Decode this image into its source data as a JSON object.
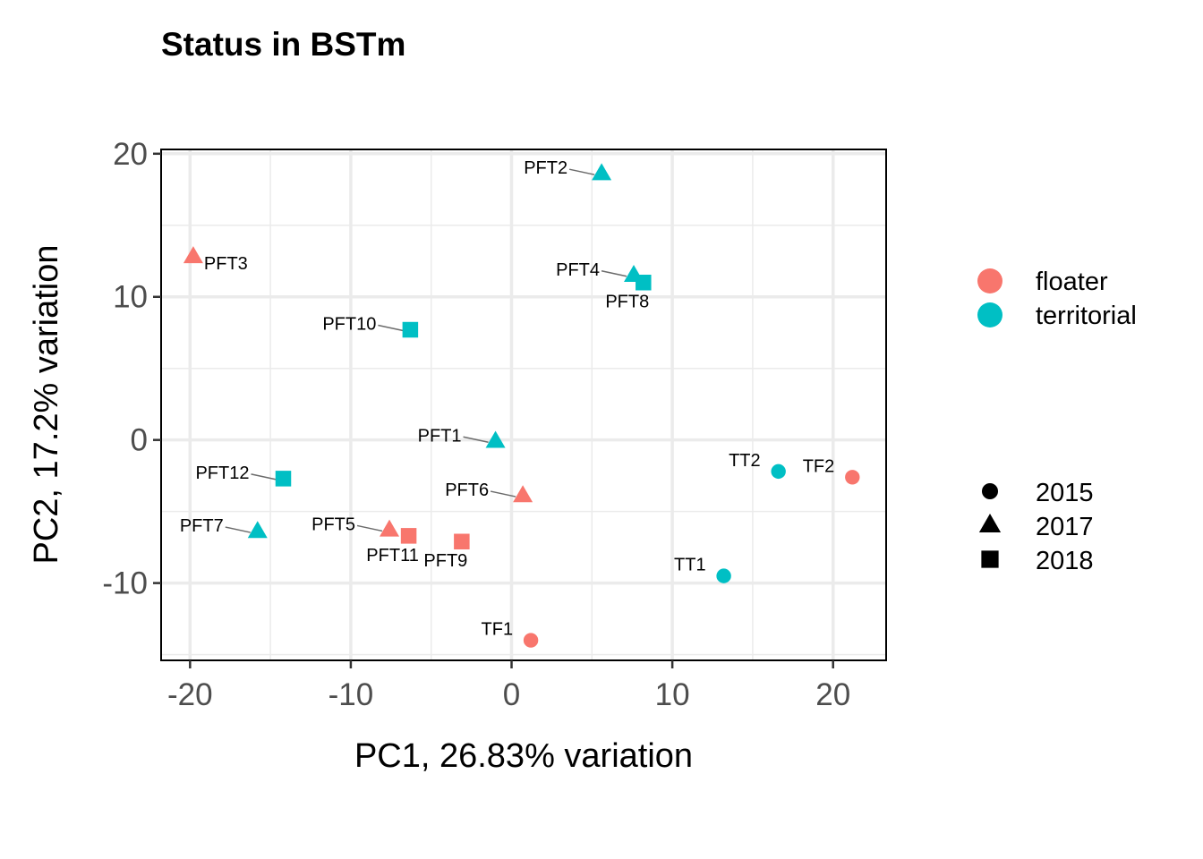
{
  "chart_data": {
    "type": "scatter",
    "title": "Status in BSTm",
    "xlabel": "PC1, 26.83% variation",
    "ylabel": "PC2, 17.2% variation",
    "xlim": [
      -21.8,
      23.3
    ],
    "ylim": [
      -15.4,
      20.3
    ],
    "x_ticks": [
      -20,
      -10,
      0,
      10,
      20
    ],
    "x_tick_labels": [
      "-20",
      "-10",
      "0",
      "10",
      "20"
    ],
    "y_ticks": [
      -10,
      0,
      10,
      20
    ],
    "y_tick_labels": [
      "-10",
      "0",
      "10",
      "20"
    ],
    "grid": true,
    "colors": {
      "floater": "#F8766D",
      "territorial": "#00BFC4"
    },
    "legend_color": {
      "position": "right",
      "entries": [
        "floater",
        "territorial"
      ]
    },
    "legend_shape": {
      "position": "right",
      "entries": [
        {
          "label": "2015",
          "shape": "circle"
        },
        {
          "label": "2017",
          "shape": "triangle"
        },
        {
          "label": "2018",
          "shape": "square"
        }
      ]
    },
    "points": [
      {
        "label": "PFT2",
        "x": 5.6,
        "y": 18.6,
        "status": "territorial",
        "year": "2017",
        "label_side": "left",
        "leader": true
      },
      {
        "label": "PFT3",
        "x": -19.8,
        "y": 12.8,
        "status": "floater",
        "year": "2017",
        "label_side": "right",
        "leader": false
      },
      {
        "label": "PFT4",
        "x": 7.6,
        "y": 11.5,
        "status": "territorial",
        "year": "2017",
        "label_side": "left",
        "leader": true
      },
      {
        "label": "PFT8",
        "x": 8.2,
        "y": 11.0,
        "status": "territorial",
        "year": "2018",
        "label_side": "below",
        "leader": false
      },
      {
        "label": "PFT10",
        "x": -6.3,
        "y": 7.7,
        "status": "territorial",
        "year": "2018",
        "label_side": "left",
        "leader": true
      },
      {
        "label": "PFT1",
        "x": -1.0,
        "y": -0.1,
        "status": "territorial",
        "year": "2017",
        "label_side": "left",
        "leader": true
      },
      {
        "label": "PFT12",
        "x": -14.2,
        "y": -2.7,
        "status": "territorial",
        "year": "2018",
        "label_side": "left",
        "leader": true
      },
      {
        "label": "PFT6",
        "x": 0.7,
        "y": -3.9,
        "status": "floater",
        "year": "2017",
        "label_side": "left",
        "leader": true
      },
      {
        "label": "PFT5",
        "x": -7.6,
        "y": -6.3,
        "status": "floater",
        "year": "2017",
        "label_side": "left",
        "leader": true
      },
      {
        "label": "PFT11",
        "x": -6.4,
        "y": -6.7,
        "status": "floater",
        "year": "2018",
        "label_side": "below",
        "leader": false
      },
      {
        "label": "PFT9",
        "x": -3.1,
        "y": -7.1,
        "status": "floater",
        "year": "2018",
        "label_side": "below",
        "leader": false
      },
      {
        "label": "PFT7",
        "x": -15.8,
        "y": -6.4,
        "status": "territorial",
        "year": "2017",
        "label_side": "left",
        "leader": true
      },
      {
        "label": "TT2",
        "x": 16.6,
        "y": -2.2,
        "status": "territorial",
        "year": "2015",
        "label_side": "left",
        "leader": false
      },
      {
        "label": "TF2",
        "x": 21.2,
        "y": -2.6,
        "status": "floater",
        "year": "2015",
        "label_side": "left",
        "leader": false
      },
      {
        "label": "TT1",
        "x": 13.2,
        "y": -9.5,
        "status": "territorial",
        "year": "2015",
        "label_side": "left",
        "leader": false
      },
      {
        "label": "TF1",
        "x": 1.2,
        "y": -14.0,
        "status": "floater",
        "year": "2015",
        "label_side": "left",
        "leader": false
      }
    ]
  }
}
